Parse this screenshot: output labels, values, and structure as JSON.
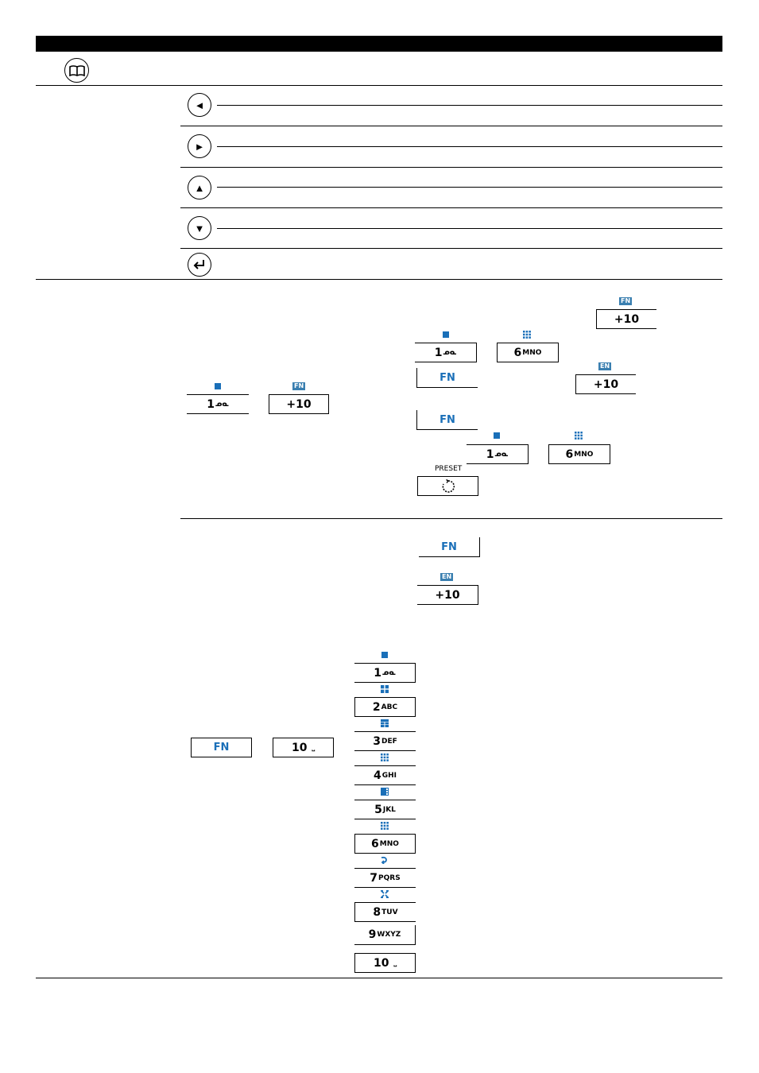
{
  "colors": {
    "accent": "#1a6fb8",
    "badge": "#3a7fb0",
    "rule": "#000000"
  },
  "header": {
    "icon": "book-icon"
  },
  "nav_keys": [
    {
      "icon": "arrow-left-icon",
      "glyph": "◄"
    },
    {
      "icon": "arrow-right-icon",
      "glyph": "►"
    },
    {
      "icon": "arrow-up-icon",
      "glyph": "▲"
    },
    {
      "icon": "arrow-down-icon",
      "glyph": "▼"
    },
    {
      "icon": "enter-icon",
      "glyph": "↵"
    }
  ],
  "keys": {
    "k1": "1",
    "k1_sub": "ᓄᓇ",
    "k2": "2",
    "k2_sub": "ABC",
    "k3": "3",
    "k3_sub": "DEF",
    "k4": "4",
    "k4_sub": "GHI",
    "k5": "5",
    "k5_sub": "JKL",
    "k6": "6",
    "k6_sub": "MNO",
    "k7": "7",
    "k7_sub": "PQRS",
    "k8": "8",
    "k8_sub": "TUV",
    "k9": "9",
    "k9_sub": "WXYZ",
    "k10": "10",
    "k10_sub": "⎵",
    "plus10": "+10",
    "fn": "FN",
    "fn_badge": "FN",
    "en_badge": "EN",
    "preset": "PRESET",
    "preset_icon": "preset-icon"
  }
}
